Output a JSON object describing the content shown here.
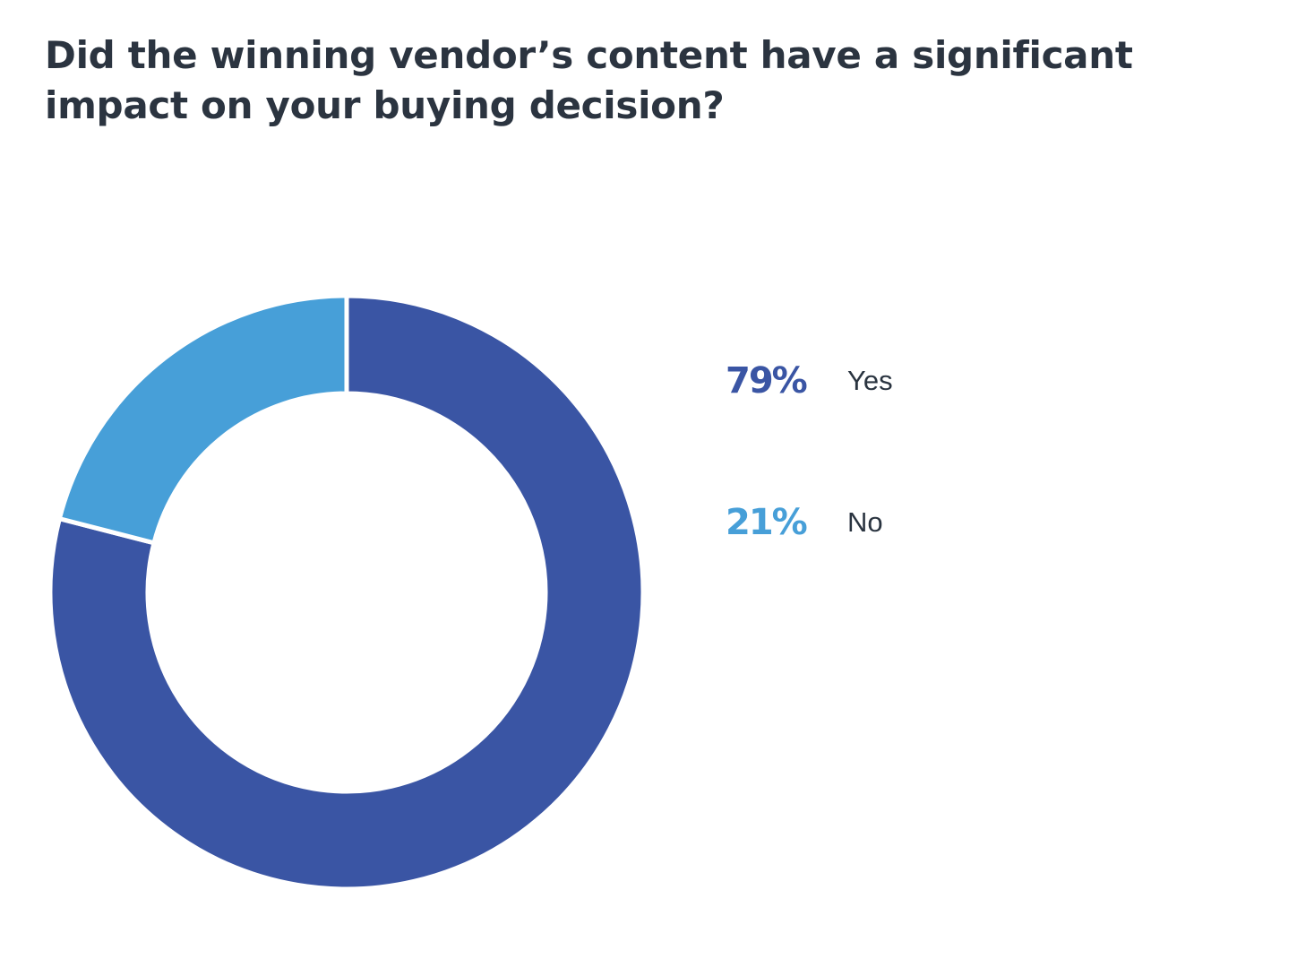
{
  "chart_data": {
    "type": "donut",
    "title": "Did the winning vendor’s content have a significant impact on your buying decision?",
    "categories": [
      "Yes",
      "No"
    ],
    "values": [
      79,
      21
    ],
    "value_labels": [
      "79%",
      "21%"
    ],
    "colors": [
      "#3a55a4",
      "#479fd8"
    ]
  }
}
